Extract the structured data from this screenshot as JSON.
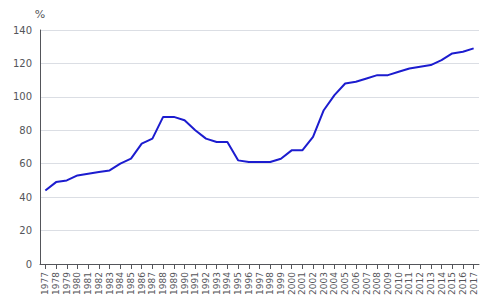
{
  "chart_data": {
    "type": "line",
    "ylabel": "%",
    "x": [
      1977,
      1978,
      1979,
      1980,
      1981,
      1982,
      1983,
      1984,
      1985,
      1986,
      1987,
      1988,
      1989,
      1990,
      1991,
      1992,
      1993,
      1994,
      1995,
      1996,
      1997,
      1998,
      1999,
      2000,
      2001,
      2002,
      2003,
      2004,
      2005,
      2006,
      2007,
      2008,
      2009,
      2010,
      2011,
      2012,
      2013,
      2014,
      2015,
      2016,
      2017
    ],
    "values": [
      44,
      49,
      50,
      53,
      54,
      55,
      56,
      60,
      63,
      72,
      75,
      88,
      88,
      86,
      80,
      75,
      73,
      73,
      62,
      61,
      61,
      61,
      63,
      68,
      68,
      76,
      92,
      101,
      108,
      109,
      111,
      113,
      113,
      115,
      117,
      118,
      119,
      122,
      126,
      127,
      129
    ],
    "color": "#1c1ccf",
    "xlim": [
      1976.5,
      2017.5
    ],
    "xticks": [
      1977,
      1978,
      1979,
      1980,
      1981,
      1982,
      1983,
      1984,
      1985,
      1986,
      1987,
      1988,
      1989,
      1990,
      1991,
      1992,
      1993,
      1994,
      1995,
      1996,
      1997,
      1998,
      1999,
      2000,
      2001,
      2002,
      2003,
      2004,
      2005,
      2006,
      2007,
      2008,
      2009,
      2010,
      2011,
      2012,
      2013,
      2014,
      2015,
      2016,
      2017
    ],
    "ylim": [
      0,
      140
    ],
    "yticks": [
      0,
      20,
      40,
      60,
      80,
      100,
      120,
      140
    ],
    "grid": true
  }
}
